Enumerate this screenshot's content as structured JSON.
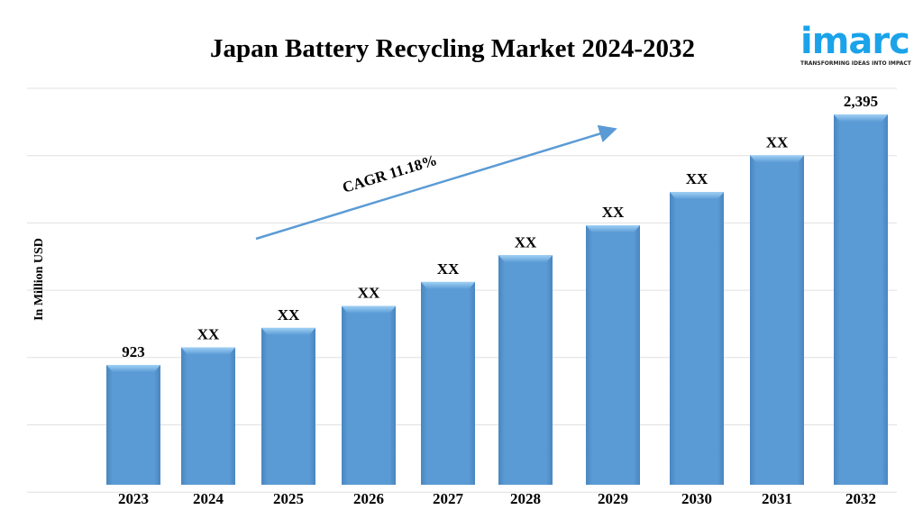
{
  "chart_data": {
    "type": "bar",
    "title": "Japan Battery Recycling Market 2024-2032",
    "ylabel": "In Million USD",
    "xlabel": "",
    "categories": [
      "2023",
      "2024",
      "2025",
      "2026",
      "2027",
      "2028",
      "2029",
      "2030",
      "2031",
      "2032"
    ],
    "values": [
      923,
      1026,
      1141,
      1269,
      1411,
      1568,
      1744,
      1939,
      2155,
      2395
    ],
    "data_labels": [
      "923",
      "XX",
      "XX",
      "XX",
      "XX",
      "XX",
      "XX",
      "XX",
      "XX",
      "2,395"
    ],
    "ylim": [
      219,
      2549
    ],
    "grid": true,
    "annotation": "CAGR 11.18%",
    "bar_color": "#5b9bd5",
    "arrow_color": "#5b9bd5"
  },
  "logo": {
    "word": "imarc",
    "tagline": "TRANSFORMING IDEAS INTO IMPACT",
    "color": "#1ba3ea"
  }
}
